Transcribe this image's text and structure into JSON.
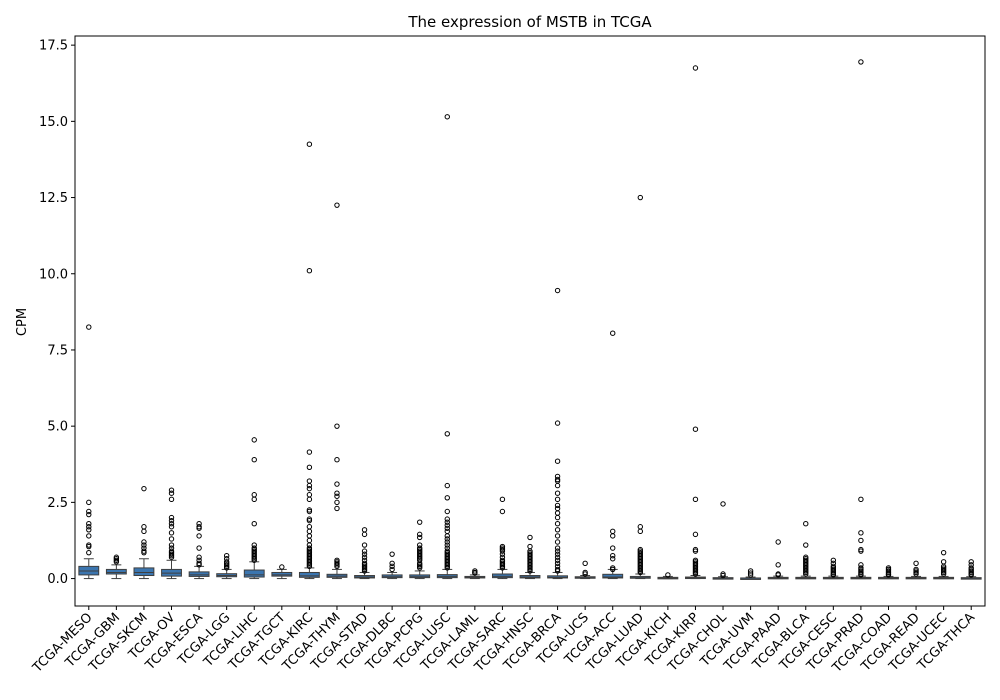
{
  "chart_data": {
    "type": "box",
    "title": "The expression of MSTB in TCGA",
    "xlabel": "",
    "ylabel": "CPM",
    "ylim": [
      -0.9,
      17.8
    ],
    "yticks": [
      0.0,
      2.5,
      5.0,
      7.5,
      10.0,
      12.5,
      15.0,
      17.5
    ],
    "ytick_labels": [
      "0.0",
      "2.5",
      "5.0",
      "7.5",
      "10.0",
      "12.5",
      "15.0",
      "17.5"
    ],
    "box_color": "#3b75af",
    "grid": false,
    "categories": [
      "TCGA-MESO",
      "TCGA-GBM",
      "TCGA-SKCM",
      "TCGA-OV",
      "TCGA-ESCA",
      "TCGA-LGG",
      "TCGA-LIHC",
      "TCGA-TGCT",
      "TCGA-KIRC",
      "TCGA-THYM",
      "TCGA-STAD",
      "TCGA-DLBC",
      "TCGA-PCPG",
      "TCGA-LUSC",
      "TCGA-LAML",
      "TCGA-SARC",
      "TCGA-HNSC",
      "TCGA-BRCA",
      "TCGA-UCS",
      "TCGA-ACC",
      "TCGA-LUAD",
      "TCGA-KICH",
      "TCGA-KIRP",
      "TCGA-CHOL",
      "TCGA-UVM",
      "TCGA-PAAD",
      "TCGA-BLCA",
      "TCGA-CESC",
      "TCGA-PRAD",
      "TCGA-COAD",
      "TCGA-READ",
      "TCGA-UCEC",
      "TCGA-THCA"
    ],
    "boxes": [
      {
        "whisker_low": 0.0,
        "q1": 0.12,
        "median": 0.25,
        "q3": 0.4,
        "whisker_high": 0.65,
        "outliers": [
          8.25,
          2.5,
          2.2,
          2.1,
          1.8,
          1.7,
          1.6,
          1.4,
          1.1,
          1.05,
          0.85
        ]
      },
      {
        "whisker_low": 0.0,
        "q1": 0.15,
        "median": 0.2,
        "q3": 0.3,
        "whisker_high": 0.45,
        "outliers": [
          0.7,
          0.65,
          0.6,
          0.55
        ]
      },
      {
        "whisker_low": 0.0,
        "q1": 0.1,
        "median": 0.2,
        "q3": 0.35,
        "whisker_high": 0.65,
        "outliers": [
          2.95,
          1.7,
          1.55,
          1.2,
          1.1,
          1.0,
          0.9,
          0.85
        ]
      },
      {
        "whisker_low": 0.0,
        "q1": 0.08,
        "median": 0.18,
        "q3": 0.3,
        "whisker_high": 0.6,
        "outliers": [
          2.9,
          2.8,
          2.6,
          2.0,
          1.9,
          1.8,
          1.7,
          1.5,
          1.3,
          1.1,
          1.0,
          0.9,
          0.85,
          0.8,
          0.75,
          0.7
        ]
      },
      {
        "whisker_low": 0.0,
        "q1": 0.07,
        "median": 0.12,
        "q3": 0.22,
        "whisker_high": 0.4,
        "outliers": [
          1.8,
          1.7,
          1.65,
          1.4,
          1.0,
          0.7,
          0.6,
          0.5,
          0.45
        ]
      },
      {
        "whisker_low": 0.0,
        "q1": 0.06,
        "median": 0.1,
        "q3": 0.16,
        "whisker_high": 0.3,
        "outliers": [
          0.75,
          0.65,
          0.55,
          0.5,
          0.45,
          0.4,
          0.35
        ]
      },
      {
        "whisker_low": 0.0,
        "q1": 0.05,
        "median": 0.12,
        "q3": 0.28,
        "whisker_high": 0.55,
        "outliers": [
          4.55,
          3.9,
          2.75,
          2.6,
          1.8,
          1.1,
          1.0,
          0.95,
          0.9,
          0.85,
          0.8,
          0.75,
          0.7,
          0.65,
          0.6
        ]
      },
      {
        "whisker_low": 0.0,
        "q1": 0.08,
        "median": 0.12,
        "q3": 0.2,
        "whisker_high": 0.3,
        "outliers": [
          0.38
        ]
      },
      {
        "whisker_low": 0.0,
        "q1": 0.04,
        "median": 0.09,
        "q3": 0.2,
        "whisker_high": 0.35,
        "outliers": [
          14.25,
          10.1,
          4.15,
          3.65,
          3.2,
          3.05,
          2.95,
          2.75,
          2.6,
          2.25,
          2.2,
          1.95,
          1.9,
          1.7,
          1.55,
          1.4,
          1.25,
          1.1,
          1.0,
          0.95,
          0.9,
          0.85,
          0.8,
          0.75,
          0.7,
          0.65,
          0.6,
          0.55,
          0.5,
          0.45,
          0.4
        ]
      },
      {
        "whisker_low": 0.0,
        "q1": 0.04,
        "median": 0.08,
        "q3": 0.14,
        "whisker_high": 0.3,
        "outliers": [
          12.25,
          5.0,
          3.9,
          3.1,
          2.8,
          2.7,
          2.5,
          2.3,
          0.6,
          0.55,
          0.5,
          0.45,
          0.4
        ]
      },
      {
        "whisker_low": 0.0,
        "q1": 0.02,
        "median": 0.05,
        "q3": 0.1,
        "whisker_high": 0.2,
        "outliers": [
          1.6,
          1.45,
          1.1,
          0.9,
          0.8,
          0.7,
          0.6,
          0.5,
          0.45,
          0.4,
          0.35,
          0.3,
          0.25
        ]
      },
      {
        "whisker_low": 0.0,
        "q1": 0.03,
        "median": 0.06,
        "q3": 0.12,
        "whisker_high": 0.2,
        "outliers": [
          0.8,
          0.5,
          0.4,
          0.3
        ]
      },
      {
        "whisker_low": 0.0,
        "q1": 0.03,
        "median": 0.06,
        "q3": 0.12,
        "whisker_high": 0.25,
        "outliers": [
          1.85,
          1.45,
          1.35,
          1.1,
          1.0,
          0.95,
          0.9,
          0.85,
          0.8,
          0.75,
          0.7,
          0.65,
          0.6,
          0.5,
          0.45,
          0.4,
          0.35
        ]
      },
      {
        "whisker_low": 0.0,
        "q1": 0.03,
        "median": 0.07,
        "q3": 0.13,
        "whisker_high": 0.3,
        "outliers": [
          15.15,
          4.75,
          3.05,
          2.65,
          2.2,
          1.95,
          1.85,
          1.75,
          1.65,
          1.55,
          1.4,
          1.3,
          1.2,
          1.1,
          1.0,
          0.9,
          0.85,
          0.8,
          0.75,
          0.7,
          0.65,
          0.6,
          0.55,
          0.5,
          0.45,
          0.4,
          0.35
        ]
      },
      {
        "whisker_low": 0.0,
        "q1": 0.02,
        "median": 0.04,
        "q3": 0.07,
        "whisker_high": 0.12,
        "outliers": [
          0.25,
          0.2,
          0.18
        ]
      },
      {
        "whisker_low": 0.0,
        "q1": 0.03,
        "median": 0.07,
        "q3": 0.15,
        "whisker_high": 0.3,
        "outliers": [
          2.6,
          2.2,
          1.05,
          1.0,
          0.95,
          0.9,
          0.8,
          0.7,
          0.6,
          0.55,
          0.5,
          0.45,
          0.4,
          0.35
        ]
      },
      {
        "whisker_low": 0.0,
        "q1": 0.02,
        "median": 0.05,
        "q3": 0.1,
        "whisker_high": 0.2,
        "outliers": [
          1.35,
          1.05,
          0.9,
          0.85,
          0.8,
          0.75,
          0.7,
          0.65,
          0.6,
          0.55,
          0.5,
          0.45,
          0.4,
          0.35,
          0.3,
          0.25
        ]
      },
      {
        "whisker_low": 0.0,
        "q1": 0.02,
        "median": 0.04,
        "q3": 0.09,
        "whisker_high": 0.2,
        "outliers": [
          9.45,
          5.1,
          3.85,
          3.35,
          3.25,
          3.2,
          3.05,
          2.8,
          2.6,
          2.4,
          2.3,
          2.15,
          2.0,
          1.8,
          1.6,
          1.4,
          1.2,
          1.0,
          0.9,
          0.8,
          0.7,
          0.6,
          0.5,
          0.4,
          0.3,
          0.25
        ]
      },
      {
        "whisker_low": 0.0,
        "q1": 0.01,
        "median": 0.03,
        "q3": 0.06,
        "whisker_high": 0.1,
        "outliers": [
          0.5,
          0.2,
          0.15
        ]
      },
      {
        "whisker_low": 0.0,
        "q1": 0.02,
        "median": 0.05,
        "q3": 0.14,
        "whisker_high": 0.3,
        "outliers": [
          8.05,
          1.55,
          1.4,
          1.0,
          0.75,
          0.65,
          0.35,
          0.3
        ]
      },
      {
        "whisker_low": 0.0,
        "q1": 0.01,
        "median": 0.03,
        "q3": 0.07,
        "whisker_high": 0.15,
        "outliers": [
          12.5,
          1.7,
          1.55,
          0.95,
          0.9,
          0.85,
          0.8,
          0.75,
          0.7,
          0.65,
          0.6,
          0.55,
          0.5,
          0.45,
          0.4,
          0.35,
          0.3,
          0.25,
          0.2
        ]
      },
      {
        "whisker_low": 0.0,
        "q1": 0.01,
        "median": 0.02,
        "q3": 0.04,
        "whisker_high": 0.07,
        "outliers": [
          0.12
        ]
      },
      {
        "whisker_low": 0.0,
        "q1": 0.01,
        "median": 0.03,
        "q3": 0.05,
        "whisker_high": 0.1,
        "outliers": [
          16.75,
          4.9,
          2.6,
          1.45,
          0.95,
          0.9,
          0.6,
          0.55,
          0.5,
          0.45,
          0.4,
          0.35,
          0.3,
          0.25,
          0.2,
          0.15
        ]
      },
      {
        "whisker_low": 0.0,
        "q1": 0.005,
        "median": 0.01,
        "q3": 0.03,
        "whisker_high": 0.06,
        "outliers": [
          2.45,
          0.15,
          0.1
        ]
      },
      {
        "whisker_low": 0.0,
        "q1": 0.005,
        "median": 0.01,
        "q3": 0.02,
        "whisker_high": 0.05,
        "outliers": [
          0.25,
          0.18,
          0.12
        ]
      },
      {
        "whisker_low": 0.0,
        "q1": 0.01,
        "median": 0.02,
        "q3": 0.04,
        "whisker_high": 0.08,
        "outliers": [
          1.2,
          0.45,
          0.15,
          0.12
        ]
      },
      {
        "whisker_low": 0.0,
        "q1": 0.01,
        "median": 0.02,
        "q3": 0.04,
        "whisker_high": 0.08,
        "outliers": [
          1.8,
          1.1,
          0.7,
          0.65,
          0.6,
          0.55,
          0.5,
          0.45,
          0.4,
          0.35,
          0.3,
          0.25,
          0.2,
          0.15
        ]
      },
      {
        "whisker_low": 0.0,
        "q1": 0.01,
        "median": 0.02,
        "q3": 0.04,
        "whisker_high": 0.08,
        "outliers": [
          0.6,
          0.5,
          0.4,
          0.35,
          0.3,
          0.25,
          0.2,
          0.15,
          0.12
        ]
      },
      {
        "whisker_low": 0.0,
        "q1": 0.01,
        "median": 0.02,
        "q3": 0.04,
        "whisker_high": 0.08,
        "outliers": [
          16.95,
          2.6,
          1.5,
          1.25,
          0.95,
          0.9,
          0.45,
          0.35,
          0.3,
          0.25,
          0.2,
          0.15,
          0.12
        ]
      },
      {
        "whisker_low": 0.0,
        "q1": 0.01,
        "median": 0.02,
        "q3": 0.04,
        "whisker_high": 0.07,
        "outliers": [
          0.35,
          0.3,
          0.25,
          0.2,
          0.15,
          0.12
        ]
      },
      {
        "whisker_low": 0.0,
        "q1": 0.01,
        "median": 0.02,
        "q3": 0.04,
        "whisker_high": 0.07,
        "outliers": [
          0.5,
          0.3,
          0.25,
          0.2,
          0.15
        ]
      },
      {
        "whisker_low": 0.0,
        "q1": 0.01,
        "median": 0.02,
        "q3": 0.04,
        "whisker_high": 0.07,
        "outliers": [
          0.85,
          0.55,
          0.4,
          0.35,
          0.3,
          0.25,
          0.2,
          0.15
        ]
      },
      {
        "whisker_low": 0.0,
        "q1": 0.005,
        "median": 0.01,
        "q3": 0.03,
        "whisker_high": 0.06,
        "outliers": [
          0.55,
          0.45,
          0.35,
          0.3,
          0.25,
          0.2,
          0.15,
          0.12
        ]
      }
    ]
  }
}
